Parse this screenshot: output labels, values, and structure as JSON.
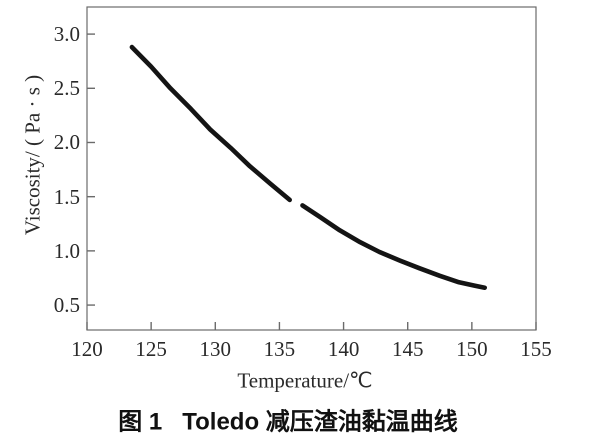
{
  "figure": {
    "caption_prefix": "图 1",
    "caption_text": "Toledo 减压渣油黏温曲线"
  },
  "chart_data": {
    "type": "line",
    "title": "图 1  Toledo 减压渣油黏温曲线",
    "xlabel": "Temperature/℃",
    "ylabel": "Viscosity/ ( Pa · s )",
    "xlim": [
      120,
      155
    ],
    "ylim": [
      0.27,
      3.25
    ],
    "xticks": [
      120,
      125,
      130,
      135,
      140,
      145,
      150,
      155
    ],
    "yticks": [
      3.0,
      2.5,
      2.0,
      1.5,
      1.0,
      0.5
    ],
    "grid": false,
    "legend": "none",
    "line_color": "#141414",
    "box_color": "#6b6b6b",
    "tick_label_color": "#2a2a2a",
    "data_gap_x": [
      135.8,
      136.8
    ],
    "series": [
      {
        "name": "viscosity-segment-1",
        "points": [
          [
            123.5,
            2.88
          ],
          [
            125.0,
            2.7
          ],
          [
            126.5,
            2.5
          ],
          [
            128.1,
            2.31
          ],
          [
            129.6,
            2.12
          ],
          [
            131.2,
            1.95
          ],
          [
            132.7,
            1.78
          ],
          [
            134.3,
            1.62
          ],
          [
            135.8,
            1.47
          ]
        ]
      },
      {
        "name": "viscosity-segment-2",
        "points": [
          [
            136.8,
            1.42
          ],
          [
            138.2,
            1.31
          ],
          [
            139.7,
            1.19
          ],
          [
            141.3,
            1.08
          ],
          [
            142.8,
            0.99
          ],
          [
            144.4,
            0.91
          ],
          [
            145.9,
            0.84
          ],
          [
            147.5,
            0.77
          ],
          [
            149.0,
            0.71
          ],
          [
            150.2,
            0.68
          ],
          [
            151.0,
            0.66
          ]
        ]
      }
    ]
  }
}
